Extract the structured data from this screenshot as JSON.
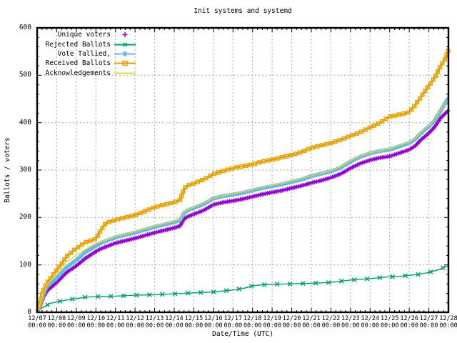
{
  "title": "Init systems and systemd",
  "axes": {
    "y_label": "Ballots / voters",
    "x_label": "Date/Time (UTC)",
    "x_tick_time": "00:00"
  },
  "chart_data": {
    "type": "line",
    "title": "Init systems and systemd",
    "xlabel": "Date/Time (UTC)",
    "ylabel": "Ballots / voters",
    "ylim": [
      0,
      600
    ],
    "xlim": [
      0,
      21
    ],
    "x_unit": "days since 12/07 00:00 UTC",
    "grid": true,
    "legend_position": "top-left-inside",
    "y_ticks": [
      0,
      100,
      200,
      300,
      400,
      500,
      600
    ],
    "y_minor_step": 20,
    "x_minor_step": 0.25,
    "x_tick_labels": [
      "12/07",
      "12/08",
      "12/09",
      "12/10",
      "12/11",
      "12/12",
      "12/13",
      "12/14",
      "12/15",
      "12/16",
      "12/17",
      "12/18",
      "12/19",
      "12/20",
      "12/21",
      "12/22",
      "12/23",
      "12/24",
      "12/25",
      "12/26",
      "12/27",
      "12/28"
    ],
    "grid_color": "#a8a8a8",
    "border_color": "#000000",
    "series": [
      {
        "name": "Unique voters",
        "color": "#9400d3",
        "marker": "plus",
        "legend_line": false,
        "line_width": 3.4,
        "marker_spacing": 2.6,
        "points": [
          [
            0,
            0
          ],
          [
            0.15,
            12
          ],
          [
            0.3,
            30
          ],
          [
            0.5,
            45
          ],
          [
            1,
            63
          ],
          [
            1.5,
            84
          ],
          [
            2,
            98
          ],
          [
            2.5,
            115
          ],
          [
            3,
            128
          ],
          [
            3.2,
            133
          ],
          [
            3.5,
            138
          ],
          [
            4,
            146
          ],
          [
            4.5,
            151
          ],
          [
            5,
            156
          ],
          [
            5.5,
            162
          ],
          [
            6,
            168
          ],
          [
            6.5,
            173
          ],
          [
            7,
            178
          ],
          [
            7.3,
            182
          ],
          [
            7.5,
            197
          ],
          [
            7.7,
            202
          ],
          [
            8,
            207
          ],
          [
            8.5,
            215
          ],
          [
            9,
            227
          ],
          [
            9.5,
            232
          ],
          [
            10,
            235
          ],
          [
            10.5,
            239
          ],
          [
            11,
            244
          ],
          [
            11.5,
            249
          ],
          [
            12,
            253
          ],
          [
            12.5,
            257
          ],
          [
            13,
            262
          ],
          [
            13.5,
            267
          ],
          [
            14,
            273
          ],
          [
            14.5,
            278
          ],
          [
            15,
            284
          ],
          [
            15.5,
            292
          ],
          [
            16,
            304
          ],
          [
            16.5,
            314
          ],
          [
            17,
            321
          ],
          [
            17.5,
            326
          ],
          [
            18,
            329
          ],
          [
            18.5,
            336
          ],
          [
            19,
            343
          ],
          [
            19.3,
            351
          ],
          [
            19.6,
            364
          ],
          [
            20,
            378
          ],
          [
            20.3,
            391
          ],
          [
            20.6,
            410
          ],
          [
            20.85,
            420
          ],
          [
            21,
            426
          ]
        ]
      },
      {
        "name": "Rejected Ballots",
        "color": "#009e73",
        "marker": "cross",
        "legend_line": true,
        "line_width": 1.4,
        "marker_spacing": 18,
        "points": [
          [
            0,
            0
          ],
          [
            0.2,
            8
          ],
          [
            0.5,
            15
          ],
          [
            0.7,
            19
          ],
          [
            1,
            22
          ],
          [
            1.5,
            26
          ],
          [
            2,
            29
          ],
          [
            2.5,
            32
          ],
          [
            3,
            33
          ],
          [
            4,
            34
          ],
          [
            5,
            36
          ],
          [
            6,
            37
          ],
          [
            7,
            39
          ],
          [
            7.5,
            40
          ],
          [
            8,
            41
          ],
          [
            9,
            43
          ],
          [
            10,
            47
          ],
          [
            10.6,
            51
          ],
          [
            11,
            56
          ],
          [
            11.5,
            58
          ],
          [
            12,
            59
          ],
          [
            13,
            60
          ],
          [
            14,
            61
          ],
          [
            15,
            63
          ],
          [
            15.6,
            66
          ],
          [
            16,
            68
          ],
          [
            17,
            71
          ],
          [
            17.5,
            73
          ],
          [
            18,
            75
          ],
          [
            18.5,
            76
          ],
          [
            19,
            78
          ],
          [
            19.5,
            80
          ],
          [
            20,
            84
          ],
          [
            20.5,
            90
          ],
          [
            20.8,
            95
          ],
          [
            21,
            98
          ]
        ]
      },
      {
        "name": "Vote Tallied,",
        "color": "#63b8e8",
        "marker": "asterisk",
        "legend_line": true,
        "line_width": 3,
        "marker_spacing": 3.2,
        "points": [
          [
            0,
            0
          ],
          [
            0.15,
            15
          ],
          [
            0.3,
            35
          ],
          [
            0.5,
            55
          ],
          [
            1,
            72
          ],
          [
            1.5,
            95
          ],
          [
            2,
            110
          ],
          [
            2.5,
            128
          ],
          [
            3,
            140
          ],
          [
            3.2,
            145
          ],
          [
            3.5,
            150
          ],
          [
            4,
            158
          ],
          [
            4.5,
            163
          ],
          [
            5,
            168
          ],
          [
            5.5,
            174
          ],
          [
            6,
            180
          ],
          [
            6.5,
            185
          ],
          [
            7,
            190
          ],
          [
            7.3,
            194
          ],
          [
            7.5,
            210
          ],
          [
            7.7,
            215
          ],
          [
            8,
            220
          ],
          [
            8.5,
            228
          ],
          [
            9,
            240
          ],
          [
            9.5,
            245
          ],
          [
            10,
            248
          ],
          [
            10.5,
            252
          ],
          [
            11,
            257
          ],
          [
            11.5,
            262
          ],
          [
            12,
            266
          ],
          [
            12.5,
            270
          ],
          [
            13,
            275
          ],
          [
            13.5,
            280
          ],
          [
            14,
            287
          ],
          [
            14.5,
            292
          ],
          [
            15,
            297
          ],
          [
            15.5,
            305
          ],
          [
            16,
            318
          ],
          [
            16.5,
            328
          ],
          [
            17,
            335
          ],
          [
            17.5,
            340
          ],
          [
            18,
            343
          ],
          [
            18.5,
            350
          ],
          [
            19,
            357
          ],
          [
            19.3,
            365
          ],
          [
            19.6,
            378
          ],
          [
            20,
            392
          ],
          [
            20.3,
            405
          ],
          [
            20.6,
            425
          ],
          [
            20.85,
            442
          ],
          [
            21,
            453
          ]
        ]
      },
      {
        "name": "Received Ballots",
        "color": "#e69f00",
        "marker": "square",
        "legend_line": true,
        "line_width": 2.2,
        "marker_spacing": 6.5,
        "points": [
          [
            0,
            0
          ],
          [
            0.15,
            20
          ],
          [
            0.3,
            45
          ],
          [
            0.5,
            62
          ],
          [
            0.8,
            78
          ],
          [
            1,
            90
          ],
          [
            1.3,
            105
          ],
          [
            1.5,
            118
          ],
          [
            1.8,
            128
          ],
          [
            2,
            135
          ],
          [
            2.5,
            148
          ],
          [
            3,
            155
          ],
          [
            3.2,
            170
          ],
          [
            3.5,
            188
          ],
          [
            4,
            195
          ],
          [
            4.5,
            200
          ],
          [
            5,
            205
          ],
          [
            5.5,
            213
          ],
          [
            6,
            222
          ],
          [
            6.5,
            227
          ],
          [
            7,
            232
          ],
          [
            7.3,
            237
          ],
          [
            7.45,
            255
          ],
          [
            7.6,
            266
          ],
          [
            8,
            272
          ],
          [
            8.5,
            280
          ],
          [
            9,
            292
          ],
          [
            9.5,
            298
          ],
          [
            10,
            304
          ],
          [
            10.5,
            308
          ],
          [
            11,
            312
          ],
          [
            11.5,
            318
          ],
          [
            12,
            322
          ],
          [
            12.5,
            327
          ],
          [
            13,
            332
          ],
          [
            13.5,
            338
          ],
          [
            14,
            347
          ],
          [
            14.5,
            352
          ],
          [
            15,
            357
          ],
          [
            15.5,
            364
          ],
          [
            16,
            372
          ],
          [
            16.5,
            380
          ],
          [
            17,
            390
          ],
          [
            17.5,
            400
          ],
          [
            18,
            413
          ],
          [
            18.5,
            417
          ],
          [
            19,
            422
          ],
          [
            19.3,
            437
          ],
          [
            19.6,
            455
          ],
          [
            20,
            478
          ],
          [
            20.3,
            495
          ],
          [
            20.6,
            520
          ],
          [
            20.85,
            535
          ],
          [
            21,
            555
          ]
        ]
      },
      {
        "name": "Acknowledgements",
        "color": "#e8d43a",
        "marker": "none",
        "legend_line": true,
        "line_width": 1.4,
        "marker_spacing": 0,
        "points": [
          [
            0,
            0
          ],
          [
            0.15,
            18
          ],
          [
            0.3,
            40
          ],
          [
            0.5,
            58
          ],
          [
            1,
            81
          ],
          [
            1.5,
            106
          ],
          [
            2,
            120
          ],
          [
            2.5,
            134
          ],
          [
            3,
            145
          ],
          [
            3.5,
            152
          ],
          [
            4,
            160
          ],
          [
            4.5,
            165
          ],
          [
            5,
            170
          ],
          [
            5.5,
            176
          ],
          [
            6,
            182
          ],
          [
            6.5,
            187
          ],
          [
            7,
            192
          ],
          [
            7.3,
            196
          ],
          [
            7.5,
            212
          ],
          [
            7.7,
            217
          ],
          [
            8,
            222
          ],
          [
            8.5,
            230
          ],
          [
            9,
            241
          ],
          [
            9.5,
            246
          ],
          [
            10,
            250
          ],
          [
            10.5,
            254
          ],
          [
            11,
            259
          ],
          [
            11.5,
            264
          ],
          [
            12,
            268
          ],
          [
            12.5,
            272
          ],
          [
            13,
            277
          ],
          [
            13.5,
            282
          ],
          [
            14,
            288
          ],
          [
            14.5,
            293
          ],
          [
            15,
            299
          ],
          [
            15.5,
            307
          ],
          [
            16,
            320
          ],
          [
            16.5,
            330
          ],
          [
            17,
            336
          ],
          [
            17.5,
            341
          ],
          [
            18,
            345
          ],
          [
            18.5,
            352
          ],
          [
            19,
            359
          ],
          [
            19.3,
            367
          ],
          [
            19.6,
            380
          ],
          [
            20,
            394
          ],
          [
            20.3,
            407
          ],
          [
            20.6,
            427
          ],
          [
            20.85,
            440
          ],
          [
            21,
            447
          ]
        ]
      }
    ]
  }
}
